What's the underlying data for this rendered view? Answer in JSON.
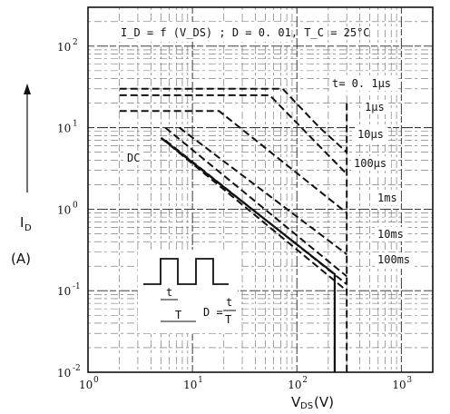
{
  "chart_data": {
    "type": "line",
    "title": "I_D = f (V_DS) ; D = 0. 01,  T_C = 25°C",
    "x_scale": "log",
    "y_scale": "log",
    "xlim": [
      1,
      2000
    ],
    "ylim": [
      0.01,
      300
    ],
    "grid": true,
    "xlabel": {
      "main": "V",
      "sub": "DS",
      "unit": "(V)"
    },
    "ylabel": {
      "main": "I",
      "sub": "D",
      "unit": "(A)"
    },
    "x_ticks": [
      {
        "base": "10",
        "exp": "0",
        "value": 1
      },
      {
        "base": "10",
        "exp": "1",
        "value": 10
      },
      {
        "base": "10",
        "exp": "2",
        "value": 100
      },
      {
        "base": "10",
        "exp": "3",
        "value": 1000
      }
    ],
    "y_ticks": [
      {
        "base": "10",
        "exp": "-2",
        "value": 0.01
      },
      {
        "base": "10",
        "exp": "-1",
        "value": 0.1
      },
      {
        "base": "10",
        "exp": "0",
        "value": 1
      },
      {
        "base": "10",
        "exp": "1",
        "value": 10
      },
      {
        "base": "10",
        "exp": "2",
        "value": 100
      }
    ],
    "series": [
      {
        "name": "t= 0. 1μs",
        "style": "dashed",
        "points": [
          [
            2,
            30
          ],
          [
            73,
            30
          ],
          [
            165,
            10
          ],
          [
            300,
            5
          ]
        ]
      },
      {
        "name": "1μs",
        "style": "dashed",
        "points": [
          [
            2,
            25
          ],
          [
            55,
            25
          ],
          [
            300,
            2.7
          ]
        ]
      },
      {
        "name": "10μs",
        "style": "dashed",
        "points": [
          [
            2,
            16
          ],
          [
            18,
            16
          ],
          [
            300,
            0.9
          ]
        ]
      },
      {
        "name": "100μs",
        "style": "dashed",
        "points": [
          [
            7.5,
            10
          ],
          [
            300,
            0.28
          ]
        ]
      },
      {
        "name": "1ms",
        "style": "dashed",
        "points": [
          [
            5.5,
            10
          ],
          [
            300,
            0.15
          ]
        ]
      },
      {
        "name": "10ms",
        "style": "dashed",
        "points": [
          [
            5.5,
            7
          ],
          [
            300,
            0.12
          ]
        ]
      },
      {
        "name": "100ms",
        "style": "dashed",
        "points": [
          [
            5,
            7.5
          ],
          [
            300,
            0.1
          ]
        ]
      },
      {
        "name": "DC",
        "style": "solid",
        "points": [
          [
            5,
            7.5
          ],
          [
            230,
            0.16
          ],
          [
            230,
            0.01
          ]
        ]
      }
    ],
    "limit_line": {
      "style": "dashed",
      "points": [
        [
          300,
          20
        ],
        [
          300,
          0.01
        ]
      ]
    },
    "pulse_annotation": {
      "t_label": "t",
      "T_label": "T",
      "formula_lhs": "D =",
      "formula_num": "t",
      "formula_den": "T"
    }
  }
}
